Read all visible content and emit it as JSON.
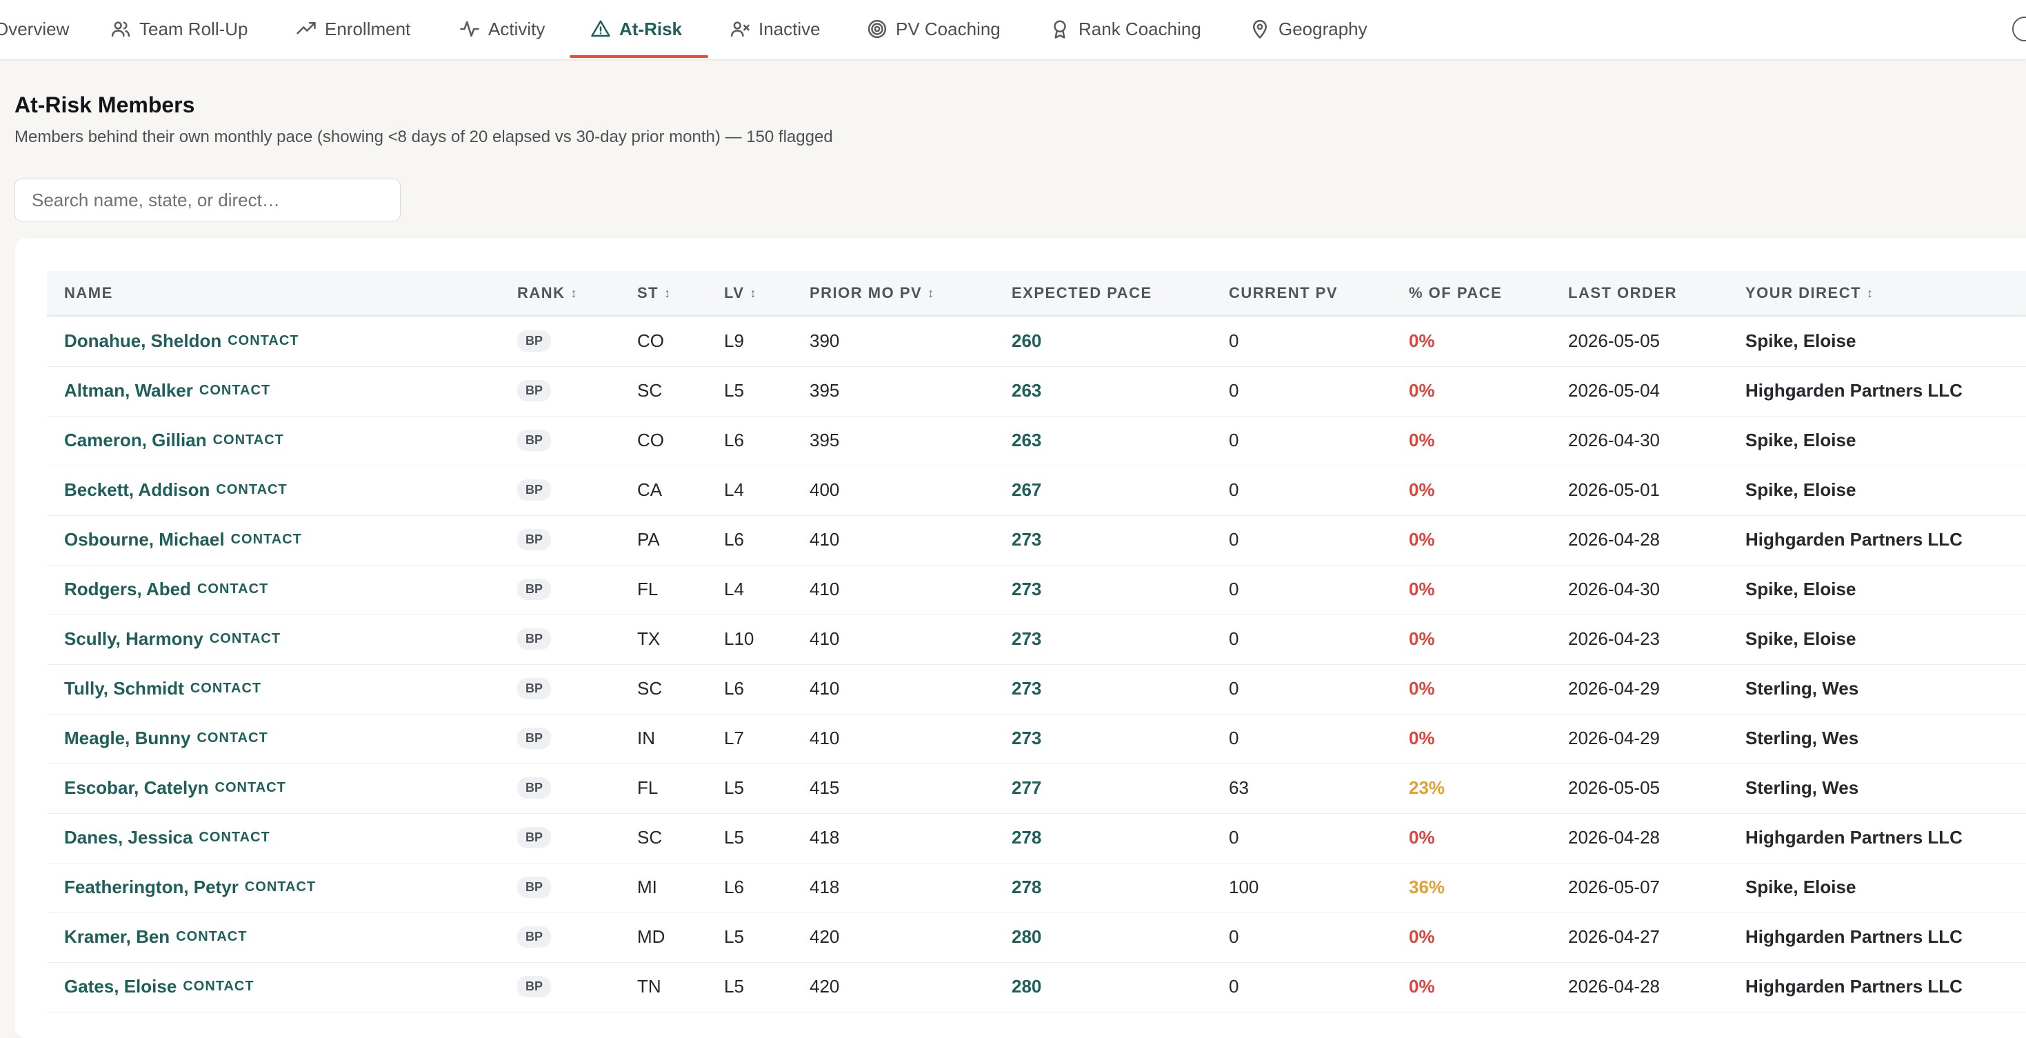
{
  "nav": {
    "tabs": [
      {
        "label": "Overview",
        "icon": "grid-icon",
        "active": false
      },
      {
        "label": "Team Roll-Up",
        "icon": "users-icon",
        "active": false
      },
      {
        "label": "Enrollment",
        "icon": "trending-up-icon",
        "active": false
      },
      {
        "label": "Activity",
        "icon": "activity-icon",
        "active": false
      },
      {
        "label": "At-Risk",
        "icon": "warning-triangle-icon",
        "active": true
      },
      {
        "label": "Inactive",
        "icon": "user-x-icon",
        "active": false
      },
      {
        "label": "PV Coaching",
        "icon": "target-icon",
        "active": false
      },
      {
        "label": "Rank Coaching",
        "icon": "award-icon",
        "active": false
      },
      {
        "label": "Geography",
        "icon": "map-pin-icon",
        "active": false
      }
    ],
    "active_color": "#1f5f5b",
    "underline_color": "#e2533f"
  },
  "page": {
    "title": "At-Risk Members",
    "subtitle": "Members behind their own monthly pace (showing <8 days of 20 elapsed vs 30-day prior month) — 150 flagged"
  },
  "search": {
    "placeholder": "Search name, state, or direct…",
    "value": ""
  },
  "table": {
    "columns": {
      "name": "NAME",
      "rank": "RANK",
      "st": "ST",
      "lv": "LV",
      "prior_mo_pv": "PRIOR MO PV",
      "expected_pace": "EXPECTED PACE",
      "current_pv": "CURRENT PV",
      "pct_of_pace": "% OF PACE",
      "last_order": "LAST ORDER",
      "your_direct": "YOUR DIRECT"
    },
    "sort_glyph": "↕",
    "contact_tag": "CONTACT",
    "rows": [
      {
        "name": "Donahue, Sheldon",
        "rank": "BP",
        "st": "CO",
        "lv": "L9",
        "prior": "390",
        "pace": "260",
        "current": "0",
        "pct": "0%",
        "last_order": "2026-05-05",
        "direct": "Spike, Eloise"
      },
      {
        "name": "Altman, Walker",
        "rank": "BP",
        "st": "SC",
        "lv": "L5",
        "prior": "395",
        "pace": "263",
        "current": "0",
        "pct": "0%",
        "last_order": "2026-05-04",
        "direct": "Highgarden Partners LLC"
      },
      {
        "name": "Cameron, Gillian",
        "rank": "BP",
        "st": "CO",
        "lv": "L6",
        "prior": "395",
        "pace": "263",
        "current": "0",
        "pct": "0%",
        "last_order": "2026-04-30",
        "direct": "Spike, Eloise"
      },
      {
        "name": "Beckett, Addison",
        "rank": "BP",
        "st": "CA",
        "lv": "L4",
        "prior": "400",
        "pace": "267",
        "current": "0",
        "pct": "0%",
        "last_order": "2026-05-01",
        "direct": "Spike, Eloise"
      },
      {
        "name": "Osbourne, Michael",
        "rank": "BP",
        "st": "PA",
        "lv": "L6",
        "prior": "410",
        "pace": "273",
        "current": "0",
        "pct": "0%",
        "last_order": "2026-04-28",
        "direct": "Highgarden Partners LLC"
      },
      {
        "name": "Rodgers, Abed",
        "rank": "BP",
        "st": "FL",
        "lv": "L4",
        "prior": "410",
        "pace": "273",
        "current": "0",
        "pct": "0%",
        "last_order": "2026-04-30",
        "direct": "Spike, Eloise"
      },
      {
        "name": "Scully, Harmony",
        "rank": "BP",
        "st": "TX",
        "lv": "L10",
        "prior": "410",
        "pace": "273",
        "current": "0",
        "pct": "0%",
        "last_order": "2026-04-23",
        "direct": "Spike, Eloise"
      },
      {
        "name": "Tully, Schmidt",
        "rank": "BP",
        "st": "SC",
        "lv": "L6",
        "prior": "410",
        "pace": "273",
        "current": "0",
        "pct": "0%",
        "last_order": "2026-04-29",
        "direct": "Sterling, Wes"
      },
      {
        "name": "Meagle, Bunny",
        "rank": "BP",
        "st": "IN",
        "lv": "L7",
        "prior": "410",
        "pace": "273",
        "current": "0",
        "pct": "0%",
        "last_order": "2026-04-29",
        "direct": "Sterling, Wes"
      },
      {
        "name": "Escobar, Catelyn",
        "rank": "BP",
        "st": "FL",
        "lv": "L5",
        "prior": "415",
        "pace": "277",
        "current": "63",
        "pct": "23%",
        "last_order": "2026-05-05",
        "direct": "Sterling, Wes"
      },
      {
        "name": "Danes, Jessica",
        "rank": "BP",
        "st": "SC",
        "lv": "L5",
        "prior": "418",
        "pace": "278",
        "current": "0",
        "pct": "0%",
        "last_order": "2026-04-28",
        "direct": "Highgarden Partners LLC"
      },
      {
        "name": "Featherington, Petyr",
        "rank": "BP",
        "st": "MI",
        "lv": "L6",
        "prior": "418",
        "pace": "278",
        "current": "100",
        "pct": "36%",
        "last_order": "2026-05-07",
        "direct": "Spike, Eloise"
      },
      {
        "name": "Kramer, Ben",
        "rank": "BP",
        "st": "MD",
        "lv": "L5",
        "prior": "420",
        "pace": "280",
        "current": "0",
        "pct": "0%",
        "last_order": "2026-04-27",
        "direct": "Highgarden Partners LLC"
      },
      {
        "name": "Gates, Eloise",
        "rank": "BP",
        "st": "TN",
        "lv": "L5",
        "prior": "420",
        "pace": "280",
        "current": "0",
        "pct": "0%",
        "last_order": "2026-04-28",
        "direct": "Highgarden Partners LLC"
      }
    ]
  },
  "colors": {
    "teal": "#1f5f5b",
    "pct_zero": "#e0443a",
    "pct_partial": "#e2a12e"
  }
}
